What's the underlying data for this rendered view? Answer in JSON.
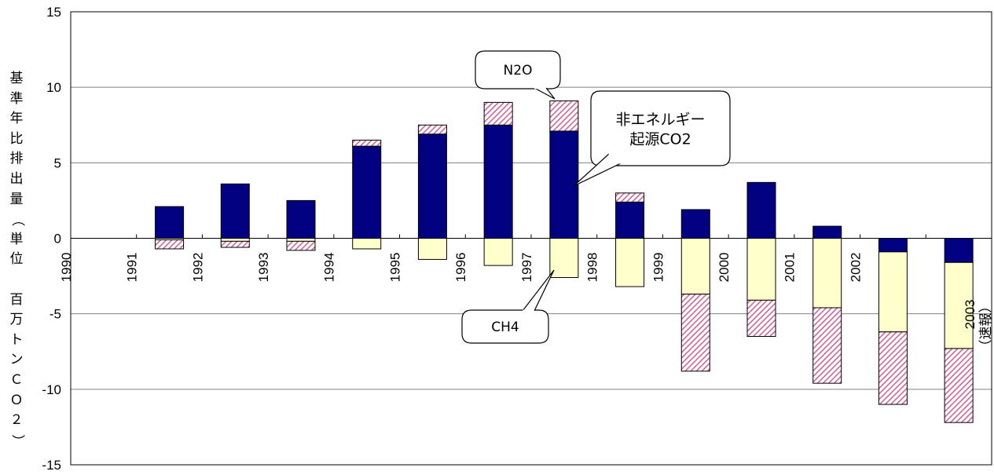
{
  "chart_data": {
    "type": "bar",
    "stacked": true,
    "title": "",
    "ylabel": "基準年比排出量（単位　百万トンCO２）",
    "ylabel_chars": [
      "基",
      "準",
      "年",
      "比",
      "排",
      "出",
      "量",
      "（",
      "単",
      "位",
      "",
      "百",
      "万",
      "ト",
      "ン",
      "Ｃ",
      "Ｏ",
      "２",
      "）"
    ],
    "ylim": [
      -15,
      15
    ],
    "yticks": [
      15,
      10,
      5,
      0,
      -5,
      -10,
      -15
    ],
    "grid": true,
    "legend": "none",
    "categories": [
      "1990",
      "1991",
      "1992",
      "1993",
      "1994",
      "1995",
      "1996",
      "1997",
      "1998",
      "1999",
      "2000",
      "2001",
      "2002",
      "2003\n（速報）"
    ],
    "series": [
      {
        "name": "非エネルギー起源CO2",
        "color": "#000080",
        "pattern": "solid",
        "values": [
          0,
          2.1,
          3.6,
          2.5,
          6.1,
          6.9,
          7.5,
          7.1,
          2.4,
          1.9,
          3.7,
          0.8,
          -0.9,
          -1.6
        ]
      },
      {
        "name": "N2O",
        "color": "#cc6699",
        "pattern": "hatched",
        "values": [
          0,
          -0.6,
          -0.4,
          -0.6,
          0.4,
          0.6,
          1.5,
          2.0,
          0.6,
          -5.1,
          -2.4,
          -5.0,
          -4.8,
          -4.9
        ]
      },
      {
        "name": "CH4",
        "color": "#ffffcc",
        "pattern": "solid",
        "values": [
          0,
          -0.1,
          -0.2,
          -0.2,
          -0.7,
          -1.4,
          -1.8,
          -2.6,
          -3.2,
          -3.7,
          -4.1,
          -4.6,
          -5.3,
          -5.7
        ]
      }
    ],
    "annotations": [
      {
        "text": "N2O",
        "points_to": "1997"
      },
      {
        "text": "非エネルギー\n起源CO2",
        "points_to": "1997"
      },
      {
        "text": "CH4",
        "points_to": "1997"
      }
    ]
  }
}
